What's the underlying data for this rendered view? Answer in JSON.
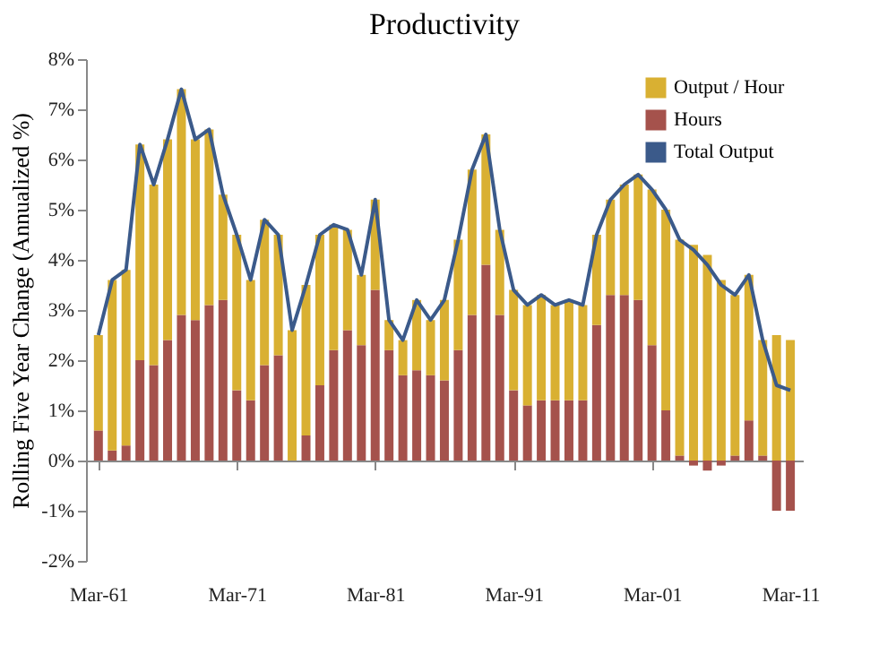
{
  "chart_data": {
    "type": "bar",
    "title": "Productivity",
    "ylabel": "Rolling Five Year Change (Annualized %)",
    "stacked": true,
    "legend": "top right",
    "x": [
      "1961-03",
      "1962-03",
      "1963-03",
      "1964-03",
      "1965-03",
      "1966-03",
      "1967-03",
      "1968-03",
      "1969-03",
      "1970-03",
      "1971-03",
      "1972-03",
      "1973-03",
      "1974-03",
      "1975-03",
      "1976-03",
      "1977-03",
      "1978-03",
      "1979-03",
      "1980-03",
      "1981-03",
      "1982-03",
      "1983-03",
      "1984-03",
      "1985-03",
      "1986-03",
      "1987-03",
      "1988-03",
      "1989-03",
      "1990-03",
      "1991-03",
      "1992-03",
      "1993-03",
      "1994-03",
      "1995-03",
      "1996-03",
      "1997-03",
      "1998-03",
      "1999-03",
      "2000-03",
      "2001-03",
      "2002-03",
      "2003-03",
      "2004-03",
      "2005-03",
      "2006-03",
      "2007-03",
      "2008-03",
      "2009-03",
      "2010-03",
      "2011-03"
    ],
    "xlim": [
      "1960-12-01",
      "2011-06-01"
    ],
    "xticks": [
      {
        "value": "1961-03",
        "label": "Mar-61"
      },
      {
        "value": "1971-03",
        "label": "Mar-71"
      },
      {
        "value": "1981-03",
        "label": "Mar-81"
      },
      {
        "value": "1991-03",
        "label": "Mar-91"
      },
      {
        "value": "2001-03",
        "label": "Mar-01"
      },
      {
        "value": "2011-03",
        "label": "Mar-11"
      }
    ],
    "ylim": [
      -2,
      8
    ],
    "yticks": [
      {
        "value": -2,
        "label": "-2%"
      },
      {
        "value": -1,
        "label": "-1%"
      },
      {
        "value": 0,
        "label": "0%"
      },
      {
        "value": 1,
        "label": "1%"
      },
      {
        "value": 2,
        "label": "2%"
      },
      {
        "value": 3,
        "label": "3%"
      },
      {
        "value": 4,
        "label": "4%"
      },
      {
        "value": 5,
        "label": "5%"
      },
      {
        "value": 6,
        "label": "6%"
      },
      {
        "value": 7,
        "label": "7%"
      },
      {
        "value": 8,
        "label": "8%"
      }
    ],
    "series": [
      {
        "name": "Hours",
        "color": "#a5524c",
        "values": [
          0.6,
          0.2,
          0.3,
          2.0,
          1.9,
          2.4,
          2.9,
          2.8,
          3.1,
          3.2,
          1.4,
          1.2,
          1.9,
          2.1,
          0.0,
          0.5,
          1.5,
          2.2,
          2.6,
          2.3,
          3.4,
          2.2,
          1.7,
          1.8,
          1.7,
          1.6,
          2.2,
          2.9,
          3.9,
          2.9,
          1.4,
          1.1,
          1.2,
          1.2,
          1.2,
          1.2,
          2.7,
          3.3,
          3.3,
          3.2,
          2.3,
          1.0,
          0.1,
          -0.1,
          -0.2,
          -0.1,
          0.1,
          0.8,
          0.1,
          -1.0,
          -1.0
        ]
      },
      {
        "name": "Output / Hour",
        "color": "#d9b032",
        "values": [
          1.9,
          3.4,
          3.5,
          4.3,
          3.6,
          4.0,
          4.5,
          3.6,
          3.5,
          2.1,
          3.1,
          2.4,
          2.9,
          2.4,
          2.6,
          3.0,
          3.0,
          2.5,
          2.0,
          1.4,
          1.8,
          0.6,
          0.7,
          1.4,
          1.1,
          1.6,
          2.2,
          2.9,
          2.6,
          1.7,
          2.0,
          2.0,
          2.1,
          1.9,
          2.0,
          1.9,
          1.8,
          1.9,
          2.2,
          2.5,
          3.1,
          4.0,
          4.3,
          4.3,
          4.1,
          3.6,
          3.2,
          2.9,
          2.3,
          2.5,
          2.4
        ]
      },
      {
        "name": "Total Output",
        "type": "line",
        "color": "#3b5a8a",
        "values": [
          2.5,
          3.6,
          3.8,
          6.3,
          5.5,
          6.4,
          7.4,
          6.4,
          6.6,
          5.3,
          4.5,
          3.6,
          4.8,
          4.5,
          2.6,
          3.5,
          4.5,
          4.7,
          4.6,
          3.7,
          5.2,
          2.8,
          2.4,
          3.2,
          2.8,
          3.2,
          4.4,
          5.8,
          6.5,
          4.6,
          3.4,
          3.1,
          3.3,
          3.1,
          3.2,
          3.1,
          4.5,
          5.2,
          5.5,
          5.7,
          5.4,
          5.0,
          4.4,
          4.2,
          3.9,
          3.5,
          3.3,
          3.7,
          2.4,
          1.5,
          1.4
        ]
      }
    ]
  }
}
